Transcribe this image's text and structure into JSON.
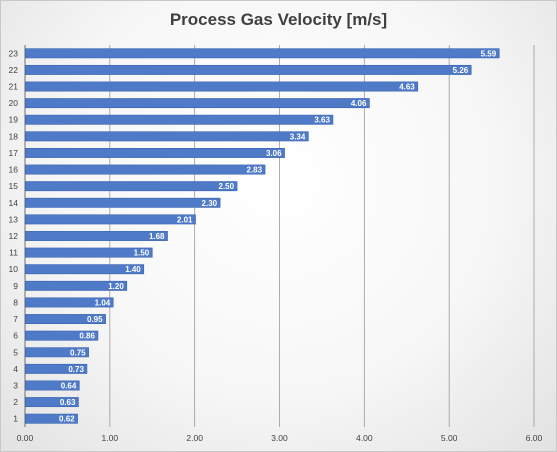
{
  "chart_data": {
    "type": "bar",
    "orientation": "horizontal",
    "title": "Process Gas Velocity [m/s]",
    "xlabel": "",
    "ylabel": "",
    "categories": [
      "1",
      "2",
      "3",
      "4",
      "5",
      "6",
      "7",
      "8",
      "9",
      "10",
      "11",
      "12",
      "13",
      "14",
      "15",
      "16",
      "17",
      "18",
      "19",
      "20",
      "21",
      "22",
      "23"
    ],
    "values": [
      0.62,
      0.63,
      0.64,
      0.73,
      0.75,
      0.86,
      0.95,
      1.04,
      1.2,
      1.4,
      1.5,
      1.68,
      2.01,
      2.3,
      2.5,
      2.83,
      3.06,
      3.34,
      3.63,
      4.06,
      4.63,
      5.26,
      5.59
    ],
    "data_labels": [
      "0.62",
      "0.63",
      "0.64",
      "0.73",
      "0.75",
      "0.86",
      "0.95",
      "1.04",
      "1.20",
      "1.40",
      "1.50",
      "1.68",
      "2.01",
      "2.30",
      "2.50",
      "2.83",
      "3.06",
      "3.34",
      "3.63",
      "4.06",
      "4.63",
      "5.26",
      "5.59"
    ],
    "xlim": [
      0,
      6
    ],
    "x_ticks": [
      "0.00",
      "1.00",
      "2.00",
      "3.00",
      "4.00",
      "5.00",
      "6.00"
    ],
    "grid": "vertical",
    "legend": "none",
    "bar_color": "#4f7ac7",
    "bar_edge_color": "#3b64b0",
    "gridline_color": "#9a9a9a"
  }
}
